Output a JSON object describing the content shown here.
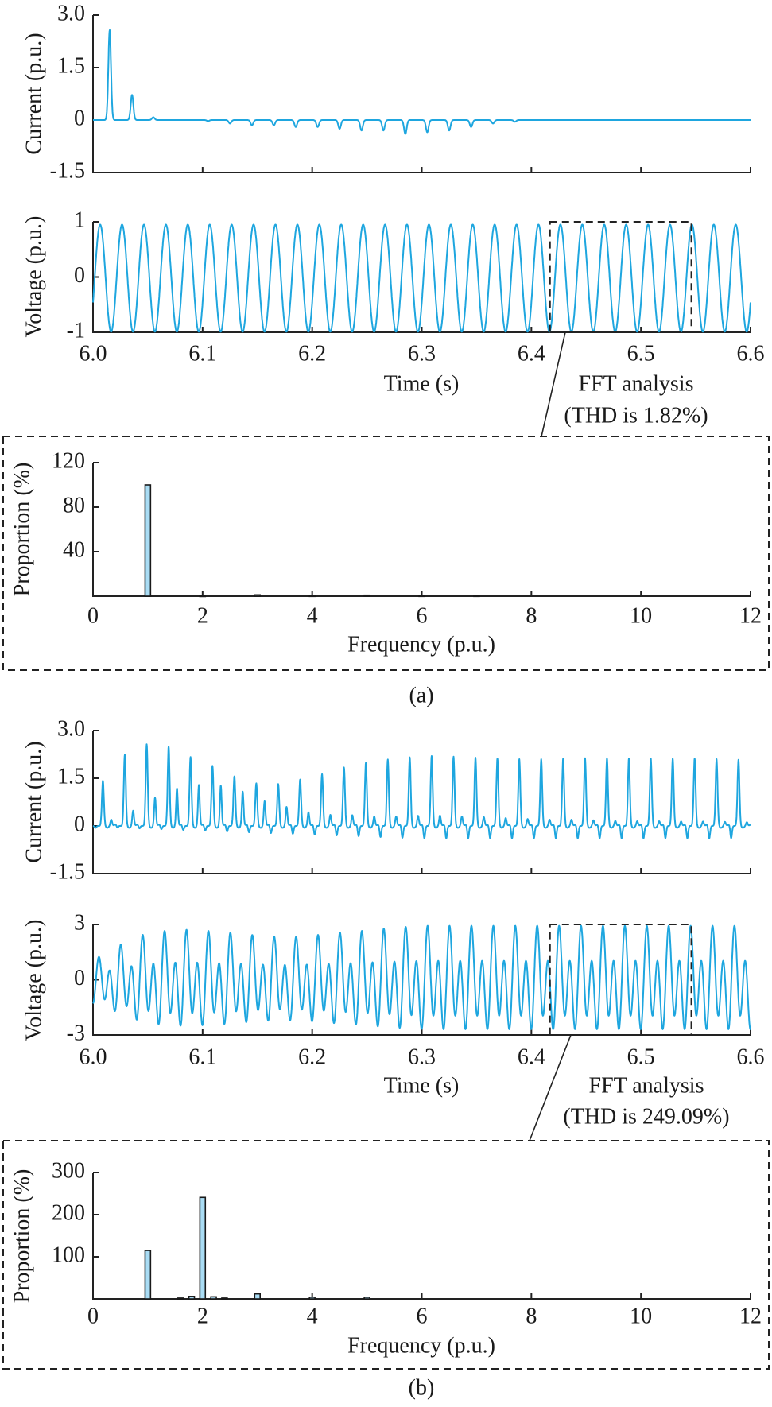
{
  "chart_data": {
    "type": "line",
    "figures": [
      {
        "caption": "(a)",
        "xlabel": "Time (s)",
        "xlim": [
          6.0,
          6.6
        ],
        "xticks": [
          6.0,
          6.1,
          6.2,
          6.3,
          6.4,
          6.5,
          6.6
        ],
        "xticklabels": [
          "6.0",
          "6.1",
          "6.2",
          "6.3",
          "6.4",
          "6.5",
          "6.6"
        ],
        "fft_window": [
          6.417,
          6.546
        ],
        "annotation": [
          "FFT analysis",
          "(THD is 1.82%)"
        ],
        "thd_percent": 1.82,
        "current": {
          "ylabel": "Current (p.u.)",
          "ylim": [
            -1.5,
            3.0
          ],
          "yticks": [
            3.0,
            1.5,
            0,
            -1.5
          ],
          "yticklabels": [
            "3.0",
            "1.5",
            "0",
            "-1.5"
          ],
          "spikes": [
            {
              "t": 6.0152,
              "a": 2.57
            },
            {
              "t": 6.0356,
              "a": 0.72
            },
            {
              "t": 6.055,
              "a": 0.08
            }
          ],
          "dips_start": 6.105,
          "dips_period": 0.02,
          "dips": [
            0.03,
            0.1,
            0.15,
            0.15,
            0.2,
            0.2,
            0.25,
            0.3,
            0.3,
            0.4,
            0.35,
            0.3,
            0.2,
            0.1,
            0.05
          ]
        },
        "voltage": {
          "ylabel": "Voltage (p.u.)",
          "ylim": [
            -1,
            1
          ],
          "yticks": [
            1,
            0,
            -1
          ],
          "yticklabels": [
            "1",
            "0",
            "-1"
          ],
          "model": {
            "freq_hz": 50,
            "amplitude": 0.97,
            "peak_time": 6.0065,
            "offset": -0.02
          }
        },
        "fft": {
          "type": "bar",
          "xlabel": "Frequency (p.u.)",
          "ylabel": "Proportion (%)",
          "xlim": [
            0,
            12
          ],
          "ylim": [
            0,
            120
          ],
          "xticks": [
            0,
            2,
            4,
            6,
            8,
            10,
            12
          ],
          "xticklabels": [
            "0",
            "2",
            "4",
            "6",
            "8",
            "10",
            "12"
          ],
          "yticks": [
            40,
            80,
            120
          ],
          "yticklabels": [
            "40",
            "80",
            "120"
          ],
          "bars": [
            {
              "f": 1,
              "v": 100
            },
            {
              "f": 2,
              "v": 0.4
            },
            {
              "f": 3,
              "v": 1.2
            },
            {
              "f": 4,
              "v": 0.5
            },
            {
              "f": 5,
              "v": 0.9
            },
            {
              "f": 6,
              "v": 0.5
            },
            {
              "f": 7,
              "v": 0.5
            }
          ]
        }
      },
      {
        "caption": "(b)",
        "xlabel": "Time (s)",
        "xlim": [
          6.0,
          6.6
        ],
        "xticks": [
          6.0,
          6.1,
          6.2,
          6.3,
          6.4,
          6.5,
          6.6
        ],
        "xticklabels": [
          "6.0",
          "6.1",
          "6.2",
          "6.3",
          "6.4",
          "6.5",
          "6.6"
        ],
        "fft_window": [
          6.417,
          6.546
        ],
        "annotation": [
          "FFT analysis",
          "(THD is 249.09%)"
        ],
        "thd_percent": 249.09,
        "current": {
          "ylabel": "Current (p.u.)",
          "ylim": [
            -1.5,
            3.0
          ],
          "yticks": [
            3.0,
            1.5,
            0,
            -1.5
          ],
          "yticklabels": [
            "3.0",
            "1.5",
            "0",
            "-1.5"
          ],
          "main_start": 6.009,
          "period": 0.02,
          "main_peaks": [
            1.42,
            2.24,
            2.57,
            2.5,
            2.17,
            1.89,
            1.56,
            1.34,
            1.32,
            1.46,
            1.63,
            1.84,
            1.99,
            2.09,
            2.16,
            2.2,
            2.18,
            2.15,
            2.12,
            2.1,
            2.1,
            2.12,
            2.13,
            2.13,
            2.12,
            2.12,
            2.12,
            2.12,
            2.1,
            2.08
          ],
          "secondary_delay": 0.0076,
          "secondary_peaks": [
            0.2,
            0.48,
            0.89,
            1.18,
            1.29,
            1.27,
            1.08,
            0.78,
            0.6,
            0.43,
            0.35,
            0.34,
            0.3,
            0.3,
            0.32,
            0.33,
            0.3,
            0.28,
            0.25,
            0.22,
            0.2,
            0.2,
            0.18,
            0.16,
            0.15,
            0.15,
            0.14,
            0.14,
            0.13,
            0.12
          ],
          "dip_delay": -0.0067,
          "dip_depth": [
            [
              6.0,
              0.05
            ],
            [
              6.3,
              0.42
            ],
            [
              6.6,
              0.42
            ]
          ]
        },
        "voltage": {
          "ylabel": "Voltage (p.u.)",
          "ylim": [
            -3,
            3
          ],
          "yticks": [
            3,
            0,
            -3
          ],
          "yticklabels": [
            "3",
            "0",
            "-3"
          ],
          "model": {
            "freq_hz": 50,
            "ref_time": 6.0052,
            "fundamental_amp": 1.02,
            "fundamental_phase_rad": 1.2,
            "second_harmonic_amp": 2.12,
            "dc": -0.15,
            "envelope_start": 6.005,
            "envelope_step": 0.02,
            "envelope": [
              0.45,
              0.67,
              0.84,
              0.91,
              0.93,
              0.91,
              0.88,
              0.84,
              0.81,
              0.81,
              0.84,
              0.88,
              0.91,
              0.95,
              0.98,
              1.0
            ]
          }
        },
        "fft": {
          "type": "bar",
          "xlabel": "Frequency (p.u.)",
          "ylabel": "Proportion (%)",
          "xlim": [
            0,
            12
          ],
          "ylim": [
            0,
            300
          ],
          "xticks": [
            0,
            2,
            4,
            6,
            8,
            10,
            12
          ],
          "xticklabels": [
            "0",
            "2",
            "4",
            "6",
            "8",
            "10",
            "12"
          ],
          "yticks": [
            100,
            200,
            300
          ],
          "yticklabels": [
            "100",
            "200",
            "300"
          ],
          "bars": [
            {
              "f": 1,
              "v": 115
            },
            {
              "f": 1.6,
              "v": 2
            },
            {
              "f": 1.8,
              "v": 6
            },
            {
              "f": 2,
              "v": 241
            },
            {
              "f": 2.2,
              "v": 5
            },
            {
              "f": 2.4,
              "v": 2
            },
            {
              "f": 3,
              "v": 12
            },
            {
              "f": 4,
              "v": 4
            },
            {
              "f": 5,
              "v": 4
            }
          ]
        }
      }
    ],
    "colors": {
      "waveform": "#1ea6df",
      "bar_fill": "#a9dcf4",
      "axis": "#222222"
    }
  }
}
